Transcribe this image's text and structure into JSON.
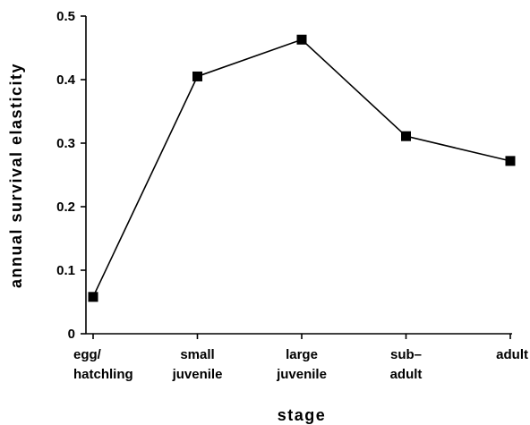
{
  "chart_data": {
    "type": "line",
    "title": "",
    "xlabel": "stage",
    "ylabel": "annual survival elasticity",
    "categories": [
      [
        "egg/",
        "hatchling"
      ],
      [
        "small",
        "juvenile"
      ],
      [
        "large",
        "juvenile"
      ],
      [
        "sub–",
        "adult"
      ],
      [
        "adult"
      ]
    ],
    "series": [
      {
        "values": [
          0.058,
          0.405,
          0.463,
          0.311,
          0.272
        ]
      }
    ],
    "ylim": [
      0,
      0.5
    ],
    "yticks": [
      "0",
      "0.1",
      "0.2",
      "0.3",
      "0.4",
      "0.5"
    ],
    "grid": false,
    "marker": "square",
    "line_color": "#000000"
  }
}
